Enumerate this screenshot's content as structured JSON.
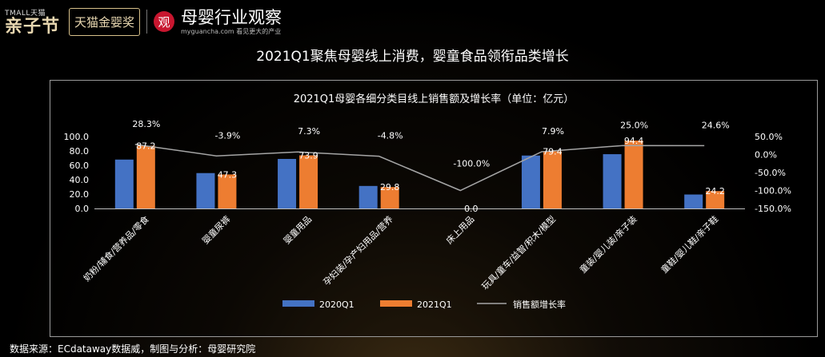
{
  "header": {
    "tmall_small": "TMALL天猫",
    "tmall_big": "亲子节",
    "award": "天猫金婴奖",
    "logo_char": "观",
    "brand_name": "母婴行业观察",
    "brand_sub": "myguancha.com 看见更大的产业"
  },
  "page_title": "2021Q1聚焦母婴线上消费，婴童食品领衔品类增长",
  "source": "数据来源：ECdataway数据威，制图与分析：母婴研究院",
  "colors": {
    "q2020": "#4472c4",
    "q2021": "#ed7d31",
    "growth": "#a5a5a5"
  },
  "chart_data": {
    "type": "bar",
    "title": "2021Q1母婴各细分类目线上销售额及增长率（单位：亿元）",
    "categories": [
      "奶粉/辅食/营养品/零食",
      "婴童尿裤",
      "婴童用品",
      "孕妇装/孕产妇用品/营养",
      "床上用品",
      "玩具/童车/益智/积木/模型",
      "童装/婴儿装/亲子装",
      "童鞋/婴儿鞋/亲子鞋"
    ],
    "series": [
      {
        "name": "2020Q1",
        "values": [
          68.0,
          49.2,
          68.9,
          31.3,
          0.0,
          73.6,
          75.5,
          19.4
        ]
      },
      {
        "name": "2021Q1",
        "values": [
          87.2,
          47.3,
          73.9,
          29.8,
          0.0,
          79.4,
          94.4,
          24.2
        ]
      }
    ],
    "growth": {
      "name": "销售额增长率",
      "values": [
        28.3,
        -3.9,
        7.3,
        -4.8,
        -100.0,
        7.9,
        25.0,
        24.6
      ]
    },
    "value_labels": [
      "87.2",
      "47.3",
      "73.9",
      "29.8",
      "0.0",
      "79.4",
      "94.4",
      "24.2"
    ],
    "growth_labels": [
      "28.3%",
      "-3.9%",
      "7.3%",
      "-4.8%",
      "-100.0%",
      "7.9%",
      "25.0%",
      "24.6%"
    ],
    "y_left": {
      "ticks": [
        "100.0",
        "80.0",
        "60.0",
        "40.0",
        "20.0",
        "0.0"
      ],
      "range": [
        0,
        100
      ]
    },
    "y_right": {
      "ticks": [
        "50.0%",
        "0.0%",
        "-50.0%",
        "-100.0%",
        "-150.0%"
      ],
      "range": [
        -150,
        50
      ]
    },
    "legend": [
      "2020Q1",
      "2021Q1",
      "销售额增长率"
    ],
    "legend_position": "bottom"
  }
}
